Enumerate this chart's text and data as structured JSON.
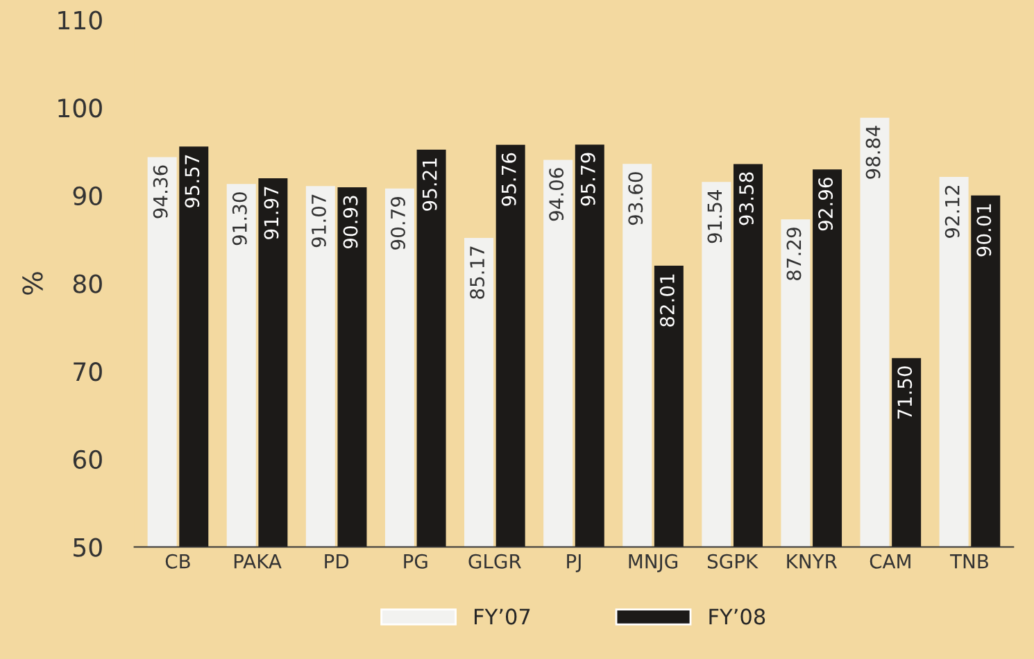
{
  "chart_data": {
    "type": "bar",
    "ylabel": "%",
    "categories": [
      "CB",
      "PAKA",
      "PD",
      "PG",
      "GLGR",
      "PJ",
      "MNJG",
      "SGPK",
      "KNYR",
      "CAM",
      "TNB"
    ],
    "series": [
      {
        "name": "FY’07",
        "color": "#f2f2f0",
        "values": [
          94.36,
          91.3,
          91.07,
          90.79,
          85.17,
          94.06,
          93.6,
          91.54,
          87.29,
          98.84,
          92.12
        ],
        "value_labels": [
          "94.36",
          "91.30",
          "91.07",
          "90.79",
          "85.17",
          "94.06",
          "93.60",
          "91.54",
          "87.29",
          "98.84",
          "92.12"
        ]
      },
      {
        "name": "FY’08",
        "color": "#1c1a18",
        "values": [
          95.57,
          91.97,
          90.93,
          95.21,
          95.76,
          95.79,
          82.01,
          93.58,
          92.96,
          71.5,
          90.01
        ],
        "value_labels": [
          "95.57",
          "91.97",
          "90.93",
          "95.21",
          "95.76",
          "95.79",
          "82.01",
          "93.58",
          "92.96",
          "71.50",
          "90.01"
        ]
      }
    ],
    "ylim": [
      50,
      110
    ],
    "yticks": [
      50,
      60,
      70,
      80,
      90,
      100,
      110
    ],
    "grid": false,
    "legend": "bottom"
  }
}
